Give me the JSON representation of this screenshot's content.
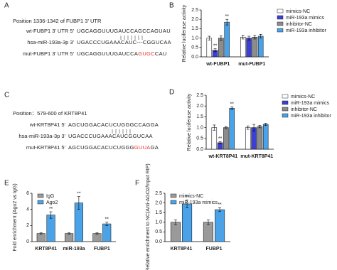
{
  "panels": {
    "A": {
      "panel_label": "A",
      "position": "Position 1336-1342 of FUBP1 3' UTR",
      "rows": [
        {
          "label": "wt-FUBP1 3' UTR  5'",
          "parts": [
            {
              "text": "UGCAGGUUUGAUCCAGCCAGUAU"
            }
          ]
        },
        {
          "label": "hsa-miR-193a-3p  3'",
          "parts": [
            {
              "text": "UGACCCUGAAACAUC---CGGUCAA"
            }
          ]
        },
        {
          "label": "mut-FUBP1 3' UTR  5'",
          "parts": [
            {
              "text": "UGCAGGUUUGAUCCA"
            },
            {
              "text": "GUGC",
              "color": "#e8312a"
            },
            {
              "text": "CAU"
            }
          ]
        }
      ]
    },
    "C": {
      "panel_label": "C",
      "position": "Position：579-600 of KRT8P41",
      "rows": [
        {
          "label": "wt-KRT8P41  5'",
          "parts": [
            {
              "text": "AGCUGGACACUCUGGGCCAGGA"
            }
          ]
        },
        {
          "label": "hsa-miR-193a-3p  3'",
          "parts": [
            {
              "text": "UGACCCUGAAACAUCGGUCAA"
            }
          ]
        },
        {
          "label": "mut-KRT8P41  5'",
          "parts": [
            {
              "text": "AGCUGGACACUCUGGG"
            },
            {
              "text": "GUUA",
              "color": "#e8312a"
            },
            {
              "text": "GA"
            }
          ]
        }
      ]
    }
  },
  "chart_data": [
    {
      "type": "bar",
      "panel_label": "B",
      "y_label": "Relative luciferase activity",
      "categories": [
        "wt-FUBP1",
        "mut-FUBP1"
      ],
      "ylim": [
        0,
        2.5
      ],
      "yticks": [
        {
          "value": 0,
          "label": "0.0"
        },
        0.5,
        {
          "value": 1,
          "label": "1.0"
        },
        1.5,
        {
          "value": 2,
          "label": "2.0"
        },
        2.5
      ],
      "legend": "right",
      "series": [
        {
          "name": "mimics-NC",
          "color": "#ffffff",
          "values": [
            1.0,
            1.05
          ],
          "errors": [
            0.1,
            0.1
          ],
          "sig": [
            null,
            null
          ]
        },
        {
          "name": "miR-193a mimics",
          "color": "#3a3fd6",
          "values": [
            0.35,
            1.0
          ],
          "errors": [
            0.08,
            0.1
          ],
          "sig": [
            "**",
            null
          ]
        },
        {
          "name": "inhibitor-NC",
          "color": "#8c8c8c",
          "values": [
            1.0,
            1.05
          ],
          "errors": [
            0.12,
            0.1
          ],
          "sig": [
            null,
            null
          ]
        },
        {
          "name": "miR-193a inhibitor",
          "color": "#4aa3e8",
          "values": [
            1.85,
            1.1
          ],
          "errors": [
            0.15,
            0.1
          ],
          "sig": [
            "**",
            null
          ]
        }
      ]
    },
    {
      "type": "bar",
      "panel_label": "D",
      "y_label": "Relative luciferase activity",
      "categories": [
        "wt-KRT8P41",
        "mut-KRT8P41"
      ],
      "ylim": [
        0,
        2.5
      ],
      "yticks": [
        {
          "value": 0,
          "label": "0.0"
        },
        0.5,
        {
          "value": 1,
          "label": "1.0"
        },
        1.5,
        {
          "value": 2,
          "label": "2.0"
        },
        2.5
      ],
      "legend": "right",
      "series": [
        {
          "name": "mimics-NC",
          "color": "#ffffff",
          "values": [
            1.0,
            1.0
          ],
          "errors": [
            0.12,
            0.08
          ],
          "sig": [
            null,
            null
          ]
        },
        {
          "name": "miR-193a mimics",
          "color": "#3a3fd6",
          "values": [
            0.3,
            1.0
          ],
          "errors": [
            0.05,
            0.15
          ],
          "sig": [
            "**",
            null
          ]
        },
        {
          "name": "inhibitor-NC",
          "color": "#8c8c8c",
          "values": [
            1.0,
            1.05
          ],
          "errors": [
            0.05,
            0.06
          ],
          "sig": [
            null,
            null
          ]
        },
        {
          "name": "miR-193a inhibitor",
          "color": "#4aa3e8",
          "values": [
            1.9,
            1.15
          ],
          "errors": [
            0.06,
            0.05
          ],
          "sig": [
            "**",
            null
          ]
        }
      ]
    },
    {
      "type": "bar",
      "panel_label": "E",
      "y_label": "Fold enrichment (Ago2 vs IgG)",
      "categories": [
        "KRT8P41",
        "miR-193a",
        "FUBP1"
      ],
      "ylim": [
        0,
        6
      ],
      "yticks": [
        0,
        2,
        4,
        6
      ],
      "legend": "upper left",
      "series": [
        {
          "name": "IgG",
          "color": "#9a9a9a",
          "values": [
            1.0,
            1.0,
            1.0
          ],
          "errors": [
            0.08,
            0.08,
            0.08
          ],
          "sig": [
            null,
            null,
            null
          ]
        },
        {
          "name": "Ago2",
          "color": "#4aa3e8",
          "values": [
            3.3,
            4.8,
            2.2
          ],
          "errors": [
            0.4,
            0.8,
            0.2
          ],
          "sig": [
            "**",
            "**",
            "**"
          ]
        }
      ]
    },
    {
      "type": "bar",
      "panel_label": "F",
      "y_label": "Relative enrichment to NC(Anti-AGO2/Input RIP)",
      "categories": [
        "KRT8P41",
        "FUBP1"
      ],
      "ylim": [
        0,
        2.5
      ],
      "yticks": [
        {
          "value": 0,
          "label": "0.0"
        },
        0.5,
        {
          "value": 1,
          "label": "1.0"
        },
        1.5,
        {
          "value": 2,
          "label": "2.0"
        },
        2.5
      ],
      "legend": "upper left",
      "series": [
        {
          "name": "mimics-NC",
          "color": "#9a9a9a",
          "values": [
            1.0,
            1.0
          ],
          "errors": [
            0.12,
            0.12
          ],
          "sig": [
            null,
            null
          ]
        },
        {
          "name": "miR-193a mimics",
          "color": "#4aa3e8",
          "values": [
            1.95,
            1.65
          ],
          "errors": [
            0.2,
            0.1
          ],
          "sig": [
            "**",
            "**"
          ]
        }
      ]
    }
  ]
}
